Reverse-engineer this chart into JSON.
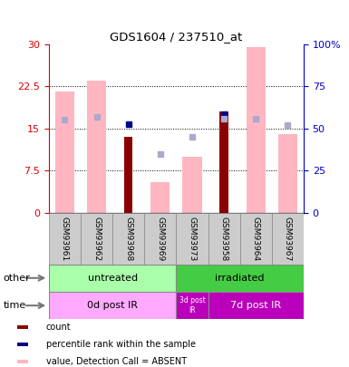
{
  "title": "GDS1604 / 237510_at",
  "samples": [
    "GSM93961",
    "GSM93962",
    "GSM93968",
    "GSM93969",
    "GSM93973",
    "GSM93958",
    "GSM93964",
    "GSM93967"
  ],
  "pink_bars": [
    21.5,
    23.5,
    null,
    5.5,
    10.0,
    null,
    29.5,
    14.0
  ],
  "red_bars": [
    null,
    null,
    13.5,
    null,
    null,
    18.0,
    null,
    null
  ],
  "blue_squares_left": [
    null,
    null,
    15.8,
    null,
    null,
    17.5,
    null,
    null
  ],
  "lavender_squares_right": [
    55.0,
    57.0,
    null,
    35.0,
    45.0,
    56.0,
    56.0,
    52.0
  ],
  "left_yticks": [
    0,
    7.5,
    15,
    22.5,
    30
  ],
  "left_yticklabels": [
    "0",
    "7.5",
    "15",
    "22.5",
    "30"
  ],
  "right_yticks": [
    0,
    25,
    50,
    75,
    100
  ],
  "right_yticklabels": [
    "0",
    "25",
    "50",
    "75",
    "100%"
  ],
  "left_ylim": [
    0,
    30
  ],
  "right_ylim": [
    0,
    100
  ],
  "bar_width": 0.6,
  "pink_color": "#FFB6C1",
  "red_color": "#8B0000",
  "blue_color": "#00008B",
  "lavender_color": "#AAAACC",
  "left_axis_color": "#DD0000",
  "right_axis_color": "#0000CC",
  "grid_yticks": [
    7.5,
    15,
    22.5
  ],
  "untreated_color": "#AAFFAA",
  "irradiated_color": "#44CC44",
  "time_0d_color": "#FFAAFF",
  "time_3d_color": "#BB00BB",
  "time_7d_color": "#BB00BB"
}
